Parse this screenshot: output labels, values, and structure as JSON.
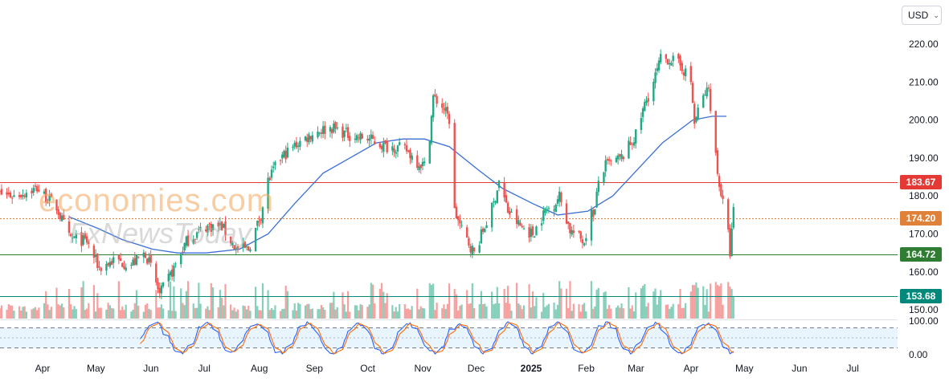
{
  "toolbar": {
    "currency": "USD"
  },
  "watermark": {
    "brand": "economies.com",
    "sub": "FxNewsToday"
  },
  "price_lines": [
    {
      "label": "183.67",
      "value": 183.67,
      "color": "#e53935",
      "style": "solid"
    },
    {
      "label": "174.20",
      "value": 174.2,
      "color": "#e0813a",
      "style": "dotted"
    },
    {
      "label": "164.72",
      "value": 164.72,
      "color": "#2e7d32",
      "style": "solid"
    },
    {
      "label": "153.68",
      "value": 153.68,
      "color": "#00897b",
      "style": "solid"
    }
  ],
  "chart_data": {
    "type": "candlestick",
    "x_tick_labels": [
      "Apr",
      "May",
      "Jun",
      "Jul",
      "Aug",
      "Sep",
      "Oct",
      "Nov",
      "Dec",
      "2025",
      "Feb",
      "Mar",
      "Apr",
      "May",
      "Jun",
      "Jul"
    ],
    "price_axis": {
      "ticks": [
        150,
        160,
        170,
        180,
        190,
        200,
        210,
        220
      ],
      "tick_labels": [
        "150.00",
        "160.00",
        "170.00",
        "180.00",
        "190.00",
        "200.00",
        "210.00",
        "220.00"
      ],
      "ylim": [
        147.5,
        229.5
      ]
    },
    "oscillator_axis": {
      "ticks": [
        0,
        100
      ],
      "tick_labels": [
        "0.00",
        "100.00"
      ],
      "band": [
        20,
        80
      ],
      "ylim": [
        -10,
        110
      ]
    },
    "up_color": "#22a884",
    "down_color": "#ef5350",
    "ma_color": "#3b6fd8",
    "price_path_anchors": [
      [
        "2024-03-01",
        181
      ],
      [
        "2024-03-15",
        180
      ],
      [
        "2024-03-28",
        182
      ],
      [
        "2024-04-08",
        177
      ],
      [
        "2024-04-15",
        169
      ],
      [
        "2024-04-25",
        168
      ],
      [
        "2024-05-02",
        161
      ],
      [
        "2024-05-10",
        163
      ],
      [
        "2024-05-20",
        162
      ],
      [
        "2024-05-28",
        165
      ],
      [
        "2024-06-01",
        160
      ],
      [
        "2024-06-05",
        154
      ],
      [
        "2024-06-12",
        160
      ],
      [
        "2024-06-20",
        168
      ],
      [
        "2024-07-01",
        172
      ],
      [
        "2024-07-10",
        172
      ],
      [
        "2024-07-18",
        166
      ],
      [
        "2024-07-25",
        166
      ],
      [
        "2024-08-01",
        175
      ],
      [
        "2024-08-05",
        184
      ],
      [
        "2024-08-12",
        190
      ],
      [
        "2024-08-22",
        194
      ],
      [
        "2024-09-01",
        197
      ],
      [
        "2024-09-10",
        198
      ],
      [
        "2024-09-20",
        196
      ],
      [
        "2024-10-01",
        195
      ],
      [
        "2024-10-10",
        193
      ],
      [
        "2024-10-15",
        193
      ],
      [
        "2024-10-22",
        192
      ],
      [
        "2024-10-28",
        189
      ],
      [
        "2024-11-01",
        188
      ],
      [
        "2024-11-03",
        191
      ],
      [
        "2024-11-06",
        206
      ],
      [
        "2024-11-12",
        203
      ],
      [
        "2024-11-15",
        200
      ],
      [
        "2024-11-18",
        176
      ],
      [
        "2024-11-22",
        171
      ],
      [
        "2024-11-29",
        165
      ],
      [
        "2024-12-05",
        172
      ],
      [
        "2024-12-10",
        178
      ],
      [
        "2024-12-13",
        184
      ],
      [
        "2024-12-18",
        176
      ],
      [
        "2024-12-25",
        172
      ],
      [
        "2025-01-01",
        170
      ],
      [
        "2025-01-08",
        176
      ],
      [
        "2025-01-13",
        178
      ],
      [
        "2025-01-16",
        180
      ],
      [
        "2025-01-22",
        171
      ],
      [
        "2025-01-30",
        168
      ],
      [
        "2025-02-02",
        175
      ],
      [
        "2025-02-05",
        176
      ],
      [
        "2025-02-07",
        184
      ],
      [
        "2025-02-11",
        188
      ],
      [
        "2025-02-20",
        190
      ],
      [
        "2025-02-28",
        196
      ],
      [
        "2025-03-05",
        204
      ],
      [
        "2025-03-10",
        210
      ],
      [
        "2025-03-14",
        216
      ],
      [
        "2025-03-20",
        216
      ],
      [
        "2025-03-26",
        214
      ],
      [
        "2025-03-31",
        210
      ],
      [
        "2025-04-02",
        199
      ],
      [
        "2025-04-05",
        204
      ],
      [
        "2025-04-08",
        207
      ],
      [
        "2025-04-10",
        208
      ],
      [
        "2025-04-12",
        200
      ],
      [
        "2025-04-15",
        186
      ],
      [
        "2025-04-18",
        178
      ],
      [
        "2025-04-21",
        170
      ],
      [
        "2025-04-22",
        165
      ],
      [
        "2025-04-24",
        176
      ]
    ],
    "ma_path_anchors": [
      [
        "2024-04-15",
        174.5
      ],
      [
        "2024-05-01",
        171.5
      ],
      [
        "2024-05-15",
        168.5
      ],
      [
        "2024-06-01",
        166
      ],
      [
        "2024-06-15",
        165
      ],
      [
        "2024-07-01",
        165
      ],
      [
        "2024-07-20",
        166
      ],
      [
        "2024-08-05",
        170
      ],
      [
        "2024-08-20",
        178
      ],
      [
        "2024-09-05",
        186
      ],
      [
        "2024-09-20",
        190
      ],
      [
        "2024-10-05",
        194
      ],
      [
        "2024-10-20",
        195
      ],
      [
        "2024-11-01",
        195
      ],
      [
        "2024-11-15",
        193
      ],
      [
        "2024-12-01",
        187
      ],
      [
        "2024-12-15",
        182
      ],
      [
        "2025-01-01",
        178
      ],
      [
        "2025-01-15",
        175
      ],
      [
        "2025-02-01",
        176
      ],
      [
        "2025-02-15",
        180
      ],
      [
        "2025-03-01",
        187
      ],
      [
        "2025-03-15",
        194
      ],
      [
        "2025-04-01",
        200
      ],
      [
        "2025-04-12",
        201
      ],
      [
        "2025-04-20",
        201
      ]
    ]
  }
}
